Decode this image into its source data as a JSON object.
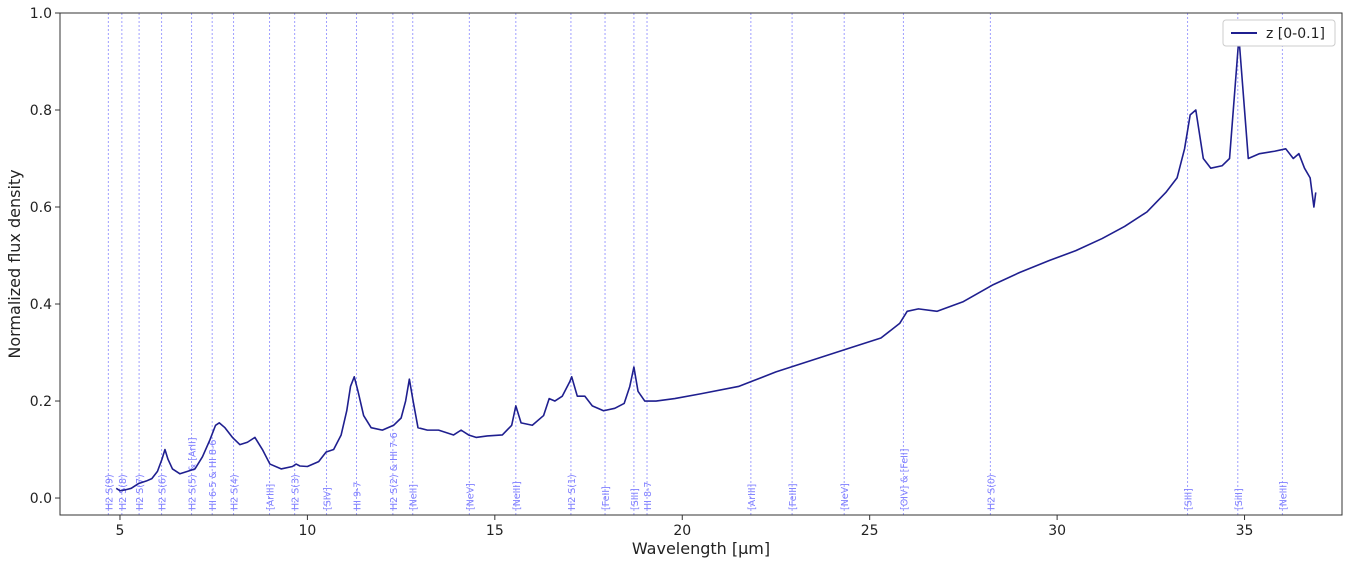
{
  "chart_data": {
    "type": "line",
    "xlabel": "Wavelength [μm]",
    "ylabel": "Normalized flux density",
    "xlim": [
      3.4,
      37.6
    ],
    "ylim": [
      -0.035,
      1.0
    ],
    "xticks": [
      5,
      10,
      15,
      20,
      25,
      30,
      35
    ],
    "yticks": [
      0.0,
      0.2,
      0.4,
      0.6,
      0.8,
      1.0
    ],
    "grid": false,
    "legend_position": "top-right",
    "line_color": "#1f1f8f",
    "marker_color": "#8080ff",
    "series": [
      {
        "name": "z [0-0.1]",
        "x": [
          4.9,
          5.0,
          5.15,
          5.3,
          5.5,
          5.7,
          5.85,
          6.0,
          6.12,
          6.2,
          6.28,
          6.4,
          6.6,
          6.8,
          7.0,
          7.2,
          7.4,
          7.55,
          7.65,
          7.8,
          8.0,
          8.2,
          8.4,
          8.6,
          8.8,
          9.0,
          9.3,
          9.6,
          9.7,
          9.8,
          10.0,
          10.3,
          10.5,
          10.7,
          10.9,
          11.05,
          11.15,
          11.25,
          11.35,
          11.5,
          11.7,
          12.0,
          12.3,
          12.5,
          12.62,
          12.72,
          12.82,
          12.95,
          13.2,
          13.5,
          13.9,
          14.1,
          14.3,
          14.5,
          14.8,
          15.2,
          15.45,
          15.56,
          15.7,
          16.0,
          16.3,
          16.45,
          16.6,
          16.8,
          17.0,
          17.05,
          17.2,
          17.4,
          17.6,
          17.9,
          18.2,
          18.45,
          18.6,
          18.71,
          18.82,
          19.0,
          19.3,
          19.8,
          20.5,
          21.5,
          22.5,
          23.5,
          24.5,
          25.3,
          25.8,
          26.0,
          26.3,
          26.8,
          27.5,
          28.3,
          29.0,
          29.8,
          30.5,
          31.2,
          31.8,
          32.4,
          32.9,
          33.2,
          33.4,
          33.55,
          33.7,
          33.9,
          34.1,
          34.4,
          34.6,
          34.75,
          34.85,
          34.95,
          35.1,
          35.4,
          35.8,
          36.1,
          36.3,
          36.45,
          36.6,
          36.75,
          36.85,
          36.9
        ],
        "values": [
          0.02,
          0.015,
          0.017,
          0.02,
          0.03,
          0.035,
          0.04,
          0.055,
          0.08,
          0.1,
          0.08,
          0.06,
          0.05,
          0.055,
          0.06,
          0.085,
          0.12,
          0.15,
          0.155,
          0.145,
          0.125,
          0.11,
          0.115,
          0.125,
          0.1,
          0.07,
          0.06,
          0.065,
          0.07,
          0.066,
          0.065,
          0.075,
          0.095,
          0.1,
          0.13,
          0.18,
          0.23,
          0.25,
          0.22,
          0.17,
          0.145,
          0.14,
          0.15,
          0.165,
          0.2,
          0.245,
          0.2,
          0.145,
          0.14,
          0.14,
          0.13,
          0.14,
          0.13,
          0.125,
          0.128,
          0.13,
          0.15,
          0.19,
          0.155,
          0.15,
          0.17,
          0.205,
          0.2,
          0.21,
          0.24,
          0.25,
          0.21,
          0.21,
          0.19,
          0.18,
          0.185,
          0.195,
          0.23,
          0.27,
          0.22,
          0.2,
          0.2,
          0.205,
          0.215,
          0.23,
          0.26,
          0.285,
          0.31,
          0.33,
          0.36,
          0.385,
          0.39,
          0.385,
          0.405,
          0.44,
          0.465,
          0.49,
          0.51,
          0.535,
          0.56,
          0.59,
          0.63,
          0.66,
          0.72,
          0.79,
          0.8,
          0.7,
          0.68,
          0.685,
          0.7,
          0.85,
          0.95,
          0.85,
          0.7,
          0.71,
          0.715,
          0.72,
          0.7,
          0.71,
          0.68,
          0.66,
          0.6,
          0.63
        ]
      }
    ],
    "line_markers": [
      {
        "x": 4.69,
        "label": "H2 S(9)"
      },
      {
        "x": 5.05,
        "label": "H2 S(8)"
      },
      {
        "x": 5.51,
        "label": "H2 S(7)"
      },
      {
        "x": 6.11,
        "label": "H2 S(6)"
      },
      {
        "x": 6.91,
        "label": "H2 S(5) & [ArII]"
      },
      {
        "x": 7.46,
        "label": "HI 6-5 & HI 8-6"
      },
      {
        "x": 8.03,
        "label": "H2 S(4)"
      },
      {
        "x": 8.99,
        "label": "[ArIII]"
      },
      {
        "x": 9.66,
        "label": "H2 S(3)"
      },
      {
        "x": 10.51,
        "label": "[SIV]"
      },
      {
        "x": 11.31,
        "label": "HI 9-7"
      },
      {
        "x": 12.28,
        "label": "H2 S(2) & HI 7-6"
      },
      {
        "x": 12.81,
        "label": "[NeII]"
      },
      {
        "x": 14.32,
        "label": "[NeV]"
      },
      {
        "x": 15.56,
        "label": "[NeIII]"
      },
      {
        "x": 17.03,
        "label": "H2 S(1)"
      },
      {
        "x": 17.94,
        "label": "[FeII]"
      },
      {
        "x": 18.71,
        "label": "[SIII]"
      },
      {
        "x": 19.06,
        "label": "HI 8-7"
      },
      {
        "x": 21.83,
        "label": "[ArIII]"
      },
      {
        "x": 22.93,
        "label": "[FeIII]"
      },
      {
        "x": 24.32,
        "label": "[NeV]"
      },
      {
        "x": 25.9,
        "label": "[OIV] & [FeII]"
      },
      {
        "x": 28.22,
        "label": "H2 S(0)"
      },
      {
        "x": 33.48,
        "label": "[SIII]"
      },
      {
        "x": 34.82,
        "label": "[SiII]"
      },
      {
        "x": 36.01,
        "label": "[NeIII]"
      }
    ]
  }
}
